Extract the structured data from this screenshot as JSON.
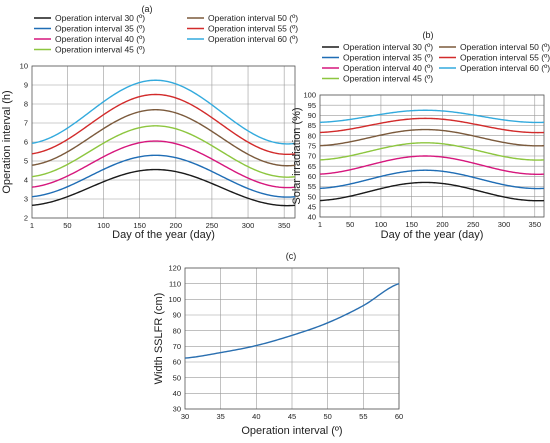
{
  "chart_data": [
    {
      "type": "line",
      "panel_label": "(a)",
      "xlabel": "Day of the year (day)",
      "ylabel": "Operation interval (h)",
      "xlim": [
        1,
        365
      ],
      "ylim": [
        2,
        10
      ],
      "xticks": [
        1,
        50,
        100,
        150,
        200,
        250,
        300,
        350
      ],
      "yticks": [
        2,
        3,
        4,
        5,
        6,
        7,
        8,
        9,
        10
      ],
      "grid": true,
      "legend_position": "top",
      "series": [
        {
          "name": "Operation interval 30 (º)",
          "color": "#1a1a1a",
          "peak_day": 172,
          "min": 2.65,
          "max": 4.55
        },
        {
          "name": "Operation interval 35 (º)",
          "color": "#1f6db5",
          "peak_day": 172,
          "min": 3.1,
          "max": 5.3
        },
        {
          "name": "Operation interval 40 (º)",
          "color": "#d6177d",
          "peak_day": 172,
          "min": 3.6,
          "max": 6.05
        },
        {
          "name": "Operation interval 45 (º)",
          "color": "#8dc63f",
          "peak_day": 172,
          "min": 4.15,
          "max": 6.85
        },
        {
          "name": "Operation interval 50 (º)",
          "color": "#7b5a3c",
          "peak_day": 172,
          "min": 4.75,
          "max": 7.7
        },
        {
          "name": "Operation interval 55 (º)",
          "color": "#d22b2b",
          "peak_day": 172,
          "min": 5.35,
          "max": 8.5
        },
        {
          "name": "Operation interval 60 (º)",
          "color": "#33aadd",
          "peak_day": 172,
          "min": 5.9,
          "max": 9.25
        }
      ]
    },
    {
      "type": "line",
      "panel_label": "(b)",
      "xlabel": "Day of the year (day)",
      "ylabel": "Solar irradiation (%)",
      "xlim": [
        1,
        365
      ],
      "ylim": [
        40,
        100
      ],
      "xticks": [
        1,
        50,
        100,
        150,
        200,
        250,
        300,
        350
      ],
      "yticks": [
        40,
        45,
        50,
        55,
        60,
        65,
        70,
        75,
        80,
        85,
        90,
        95,
        100
      ],
      "grid": true,
      "legend_position": "top",
      "series": [
        {
          "name": "Operation interval 30 (º)",
          "color": "#1a1a1a",
          "peak_day": 172,
          "min": 48,
          "max": 57
        },
        {
          "name": "Operation interval 35 (º)",
          "color": "#1f6db5",
          "peak_day": 172,
          "min": 54,
          "max": 63
        },
        {
          "name": "Operation interval 40 (º)",
          "color": "#d6177d",
          "peak_day": 172,
          "min": 61,
          "max": 70
        },
        {
          "name": "Operation interval 45 (º)",
          "color": "#8dc63f",
          "peak_day": 172,
          "min": 68,
          "max": 76.5
        },
        {
          "name": "Operation interval 50 (º)",
          "color": "#7b5a3c",
          "peak_day": 172,
          "min": 75,
          "max": 83
        },
        {
          "name": "Operation interval 55 (º)",
          "color": "#d22b2b",
          "peak_day": 172,
          "min": 81.5,
          "max": 88.5
        },
        {
          "name": "Operation interval 60 (º)",
          "color": "#33aadd",
          "peak_day": 172,
          "min": 86.5,
          "max": 92.5
        }
      ]
    },
    {
      "type": "line",
      "panel_label": "(c)",
      "xlabel": "Operation interval (º)",
      "ylabel": "Width SSLFR (cm)",
      "xlim": [
        30,
        60
      ],
      "ylim": [
        30,
        120
      ],
      "xticks": [
        30,
        35,
        40,
        45,
        50,
        55,
        60
      ],
      "yticks": [
        30,
        40,
        50,
        60,
        70,
        80,
        90,
        100,
        110,
        120
      ],
      "grid": true,
      "series": [
        {
          "name": "",
          "color": "#2a6fb0",
          "x": [
            30,
            35,
            40,
            45,
            50,
            55,
            60
          ],
          "y": [
            62.5,
            66,
            70.5,
            77,
            85,
            96,
            110
          ]
        }
      ]
    }
  ]
}
